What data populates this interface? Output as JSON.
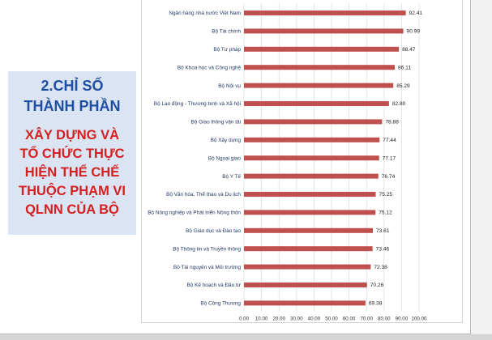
{
  "panel": {
    "title": "2.CHỈ SỐ\nTHÀNH PHẦN",
    "subtitle": "XÂY DỰNG VÀ\nTỔ CHỨC THỰC\nHIỆN THỂ CHẾ\nTHUỘC PHẠM VI\nQLNN CỦA BỘ"
  },
  "colors": {
    "bar": "#c0504d",
    "text": "#1f3864",
    "grid": "#d9d9d9",
    "panel_title": "#1f4fa3",
    "panel_sub": "#d42020"
  },
  "chart_data": {
    "type": "bar",
    "orientation": "horizontal",
    "categories": [
      "Ngân hàng nhà nước Việt Nam",
      "Bộ Tài chính",
      "Bộ Tư pháp",
      "Bộ Khoa học và Công nghệ",
      "Bộ Nội vụ",
      "Bộ Lao động - Thương binh và Xã hội",
      "Bộ Giao thông vận tải",
      "Bộ Xây dựng",
      "Bộ Ngoại giao",
      "Bộ Y Tế",
      "Bộ Văn hóa, Thể thao và Du lịch",
      "Bộ Nông nghiệp và Phát triển Nông thôn",
      "Bộ Giáo dục và Đào tạo",
      "Bộ Thông tin và Truyền thông",
      "Bộ Tài nguyên và Môi trường",
      "Bộ Kế hoạch và Đầu tư",
      "Bộ Công Thương"
    ],
    "values": [
      92.41,
      90.99,
      88.47,
      86.11,
      85.29,
      82.8,
      78.88,
      77.44,
      77.17,
      76.74,
      75.25,
      75.12,
      73.61,
      73.46,
      72.38,
      70.26,
      69.38
    ],
    "value_labels": [
      "92.41",
      "90.99",
      "88.47",
      "86.11",
      "85.29",
      "82.80",
      "78.88",
      "77.44",
      "77.17",
      "76.74",
      "75.25",
      "75.12",
      "73.61",
      "73.46",
      "72.38",
      "70.26",
      "69.38"
    ],
    "xlim": [
      0,
      100
    ],
    "x_ticks": [
      "0.00",
      "10.00",
      "20.00",
      "30.00",
      "40.00",
      "50.00",
      "60.00",
      "70.00",
      "80.00",
      "90.00",
      "100.00"
    ],
    "grid": true,
    "legend": "none"
  }
}
